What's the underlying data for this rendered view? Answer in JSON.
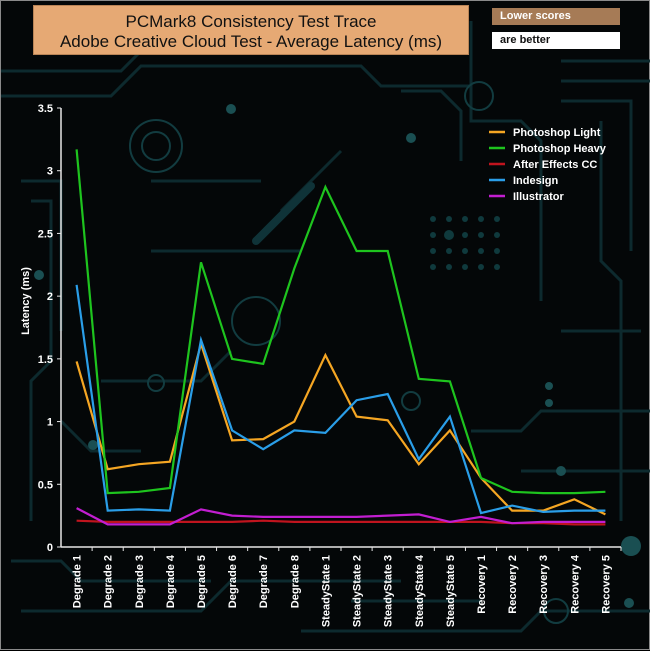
{
  "header": {
    "title_line1": "PCMark8 Consistency Test Trace",
    "title_line2": "Adobe Creative Cloud Test -  Average Latency (ms)",
    "note_top": "Lower scores",
    "note_bottom": "are better"
  },
  "chart_data": {
    "type": "line",
    "title": "PCMark8 Consistency Test Trace Adobe Creative Cloud Test -  Average Latency (ms)",
    "ylabel": "Latency (ms)",
    "xlabel": "",
    "ylim": [
      0,
      3.5
    ],
    "yticks": [
      "0",
      "0.5",
      "1",
      "1.5",
      "2",
      "2.5",
      "3",
      "3.5"
    ],
    "categories": [
      "Degrade 1",
      "Degrade 2",
      "Degrade 3",
      "Degrade 4",
      "Degrade 5",
      "Degrade 6",
      "Degrade 7",
      "Degrade 8",
      "SteadyState 1",
      "SteadyState 2",
      "SteadyState 3",
      "SteadyState 4",
      "SteadyState 5",
      "Recovery 1",
      "Recovery 2",
      "Recovery 3",
      "Recovery 4",
      "Recovery 5"
    ],
    "legend_position": "top-right",
    "grid": false,
    "series": [
      {
        "name": "Photoshop Light",
        "color": "#f5a623",
        "values": [
          1.48,
          0.62,
          0.66,
          0.68,
          1.62,
          0.85,
          0.86,
          1.0,
          1.53,
          1.04,
          1.01,
          0.66,
          0.93,
          0.55,
          0.29,
          0.29,
          0.38,
          0.26
        ]
      },
      {
        "name": " Photoshop Heavy",
        "color": "#1ec41e",
        "values": [
          3.17,
          0.43,
          0.44,
          0.47,
          2.27,
          1.5,
          1.46,
          2.22,
          2.87,
          2.36,
          2.36,
          1.34,
          1.32,
          0.55,
          0.44,
          0.43,
          0.43,
          0.44
        ]
      },
      {
        "name": "After Effects CC",
        "color": "#c0141e",
        "values": [
          0.21,
          0.2,
          0.2,
          0.2,
          0.2,
          0.2,
          0.21,
          0.2,
          0.2,
          0.2,
          0.2,
          0.2,
          0.2,
          0.2,
          0.19,
          0.19,
          0.18,
          0.18
        ]
      },
      {
        "name": "Indesign",
        "color": "#2a9ee8",
        "values": [
          2.09,
          0.29,
          0.3,
          0.29,
          1.65,
          0.93,
          0.78,
          0.93,
          0.91,
          1.17,
          1.22,
          0.7,
          1.04,
          0.27,
          0.33,
          0.28,
          0.29,
          0.29
        ]
      },
      {
        "name": "Illustrator",
        "color": "#c21ed1",
        "values": [
          0.31,
          0.18,
          0.18,
          0.18,
          0.3,
          0.25,
          0.24,
          0.24,
          0.24,
          0.24,
          0.25,
          0.26,
          0.2,
          0.24,
          0.19,
          0.2,
          0.2,
          0.2
        ]
      }
    ]
  }
}
